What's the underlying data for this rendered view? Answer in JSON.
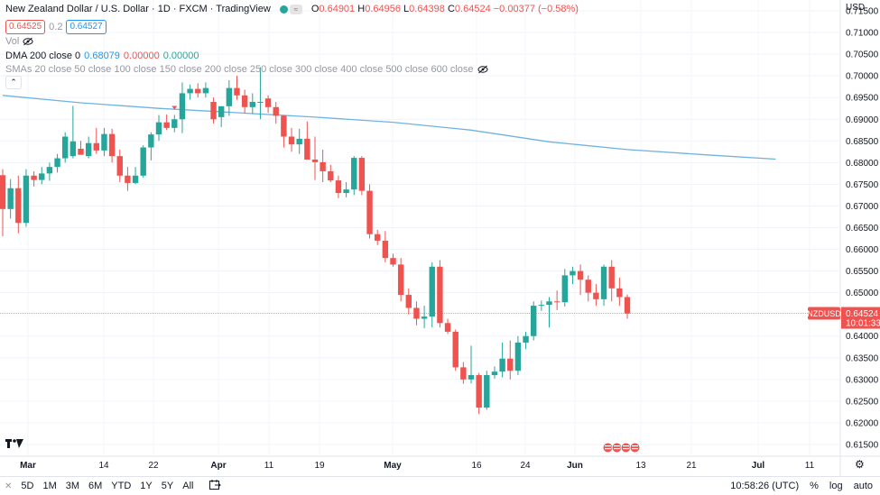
{
  "header": {
    "symbol_title": "New Zealand Dollar / U.S. Dollar · 1D · FXCM · TradingView",
    "ohlc": {
      "o_label": "O",
      "o": "0.64901",
      "h_label": "H",
      "h": "0.64956",
      "l_label": "L",
      "l": "0.64398",
      "c_label": "C",
      "c": "0.64524",
      "change": "−0.00377 (−0.58%)"
    },
    "bid": "0.64525",
    "spread": "0.2",
    "ask": "0.64527"
  },
  "indicators": {
    "vol_label": "Vol",
    "dma_label": "DMA 200 close 0",
    "dma_values": [
      "0.68079",
      "0.00000",
      "0.00000"
    ],
    "smas_label": "SMAs 20 close 50 close 100 close 150 close 200 close 250 close 300 close 400 close 500 close 600 close"
  },
  "price_axis": {
    "currency": "USD",
    "ticks": [
      "0.71500",
      "0.71000",
      "0.70500",
      "0.70000",
      "0.69500",
      "0.69000",
      "0.68500",
      "0.68000",
      "0.67500",
      "0.67000",
      "0.66500",
      "0.66000",
      "0.65500",
      "0.65000",
      "0.64000",
      "0.63500",
      "0.63000",
      "0.62500",
      "0.62000",
      "0.61500"
    ],
    "last_symbol": "NZDUSD",
    "last_price": "0.64524",
    "countdown": "10:01:33"
  },
  "time_axis": {
    "labels": [
      "Mar",
      "14",
      "22",
      "Apr",
      "11",
      "19",
      "May",
      "16",
      "24",
      "Jun",
      "13",
      "21",
      "Jul",
      "11"
    ]
  },
  "bottom_bar": {
    "ranges": [
      "5D",
      "1M",
      "3M",
      "6M",
      "YTD",
      "1Y",
      "5Y",
      "All"
    ],
    "clock": "10:58:26 (UTC)",
    "percent": "%",
    "log": "log",
    "auto": "auto"
  },
  "colors": {
    "up": "#26a69a",
    "down": "#ef5350",
    "ma": "#6fb3e0"
  },
  "chart_data": {
    "type": "candlestick",
    "candles": [
      {
        "o": 0.6771,
        "h": 0.6785,
        "l": 0.663,
        "c": 0.6693
      },
      {
        "o": 0.6693,
        "h": 0.6762,
        "l": 0.6671,
        "c": 0.6741
      },
      {
        "o": 0.6741,
        "h": 0.677,
        "l": 0.6637,
        "c": 0.6661
      },
      {
        "o": 0.6661,
        "h": 0.6785,
        "l": 0.6652,
        "c": 0.677
      },
      {
        "o": 0.677,
        "h": 0.678,
        "l": 0.6745,
        "c": 0.676
      },
      {
        "o": 0.676,
        "h": 0.679,
        "l": 0.675,
        "c": 0.6775
      },
      {
        "o": 0.6775,
        "h": 0.68,
        "l": 0.6758,
        "c": 0.679
      },
      {
        "o": 0.679,
        "h": 0.682,
        "l": 0.6777,
        "c": 0.681
      },
      {
        "o": 0.681,
        "h": 0.687,
        "l": 0.68,
        "c": 0.686
      },
      {
        "o": 0.6815,
        "h": 0.6931,
        "l": 0.681,
        "c": 0.6849
      },
      {
        "o": 0.6832,
        "h": 0.685,
        "l": 0.6822,
        "c": 0.6818
      },
      {
        "o": 0.6815,
        "h": 0.686,
        "l": 0.681,
        "c": 0.6845
      },
      {
        "o": 0.6845,
        "h": 0.688,
        "l": 0.682,
        "c": 0.6828
      },
      {
        "o": 0.6828,
        "h": 0.688,
        "l": 0.6815,
        "c": 0.6866
      },
      {
        "o": 0.6866,
        "h": 0.6878,
        "l": 0.68,
        "c": 0.6815
      },
      {
        "o": 0.6815,
        "h": 0.683,
        "l": 0.6755,
        "c": 0.677
      },
      {
        "o": 0.677,
        "h": 0.679,
        "l": 0.6735,
        "c": 0.6753
      },
      {
        "o": 0.6753,
        "h": 0.679,
        "l": 0.675,
        "c": 0.677
      },
      {
        "o": 0.677,
        "h": 0.684,
        "l": 0.6765,
        "c": 0.6835
      },
      {
        "o": 0.6835,
        "h": 0.687,
        "l": 0.6805,
        "c": 0.6865
      },
      {
        "o": 0.6865,
        "h": 0.691,
        "l": 0.685,
        "c": 0.6893
      },
      {
        "o": 0.6893,
        "h": 0.6911,
        "l": 0.6875,
        "c": 0.688
      },
      {
        "o": 0.688,
        "h": 0.691,
        "l": 0.687,
        "c": 0.69
      },
      {
        "o": 0.69,
        "h": 0.6985,
        "l": 0.6868,
        "c": 0.696
      },
      {
        "o": 0.696,
        "h": 0.698,
        "l": 0.6945,
        "c": 0.697
      },
      {
        "o": 0.697,
        "h": 0.6983,
        "l": 0.695,
        "c": 0.696
      },
      {
        "o": 0.696,
        "h": 0.6985,
        "l": 0.695,
        "c": 0.6972
      },
      {
        "o": 0.694,
        "h": 0.695,
        "l": 0.689,
        "c": 0.69
      },
      {
        "o": 0.6905,
        "h": 0.693,
        "l": 0.6882,
        "c": 0.693
      },
      {
        "o": 0.693,
        "h": 0.699,
        "l": 0.6908,
        "c": 0.6972
      },
      {
        "o": 0.6972,
        "h": 0.7,
        "l": 0.6945,
        "c": 0.6955
      },
      {
        "o": 0.6955,
        "h": 0.6968,
        "l": 0.6913,
        "c": 0.6928
      },
      {
        "o": 0.6928,
        "h": 0.696,
        "l": 0.6912,
        "c": 0.694
      },
      {
        "o": 0.694,
        "h": 0.702,
        "l": 0.69,
        "c": 0.694
      },
      {
        "o": 0.6948,
        "h": 0.6955,
        "l": 0.6915,
        "c": 0.6928
      },
      {
        "o": 0.6928,
        "h": 0.694,
        "l": 0.689,
        "c": 0.6908
      },
      {
        "o": 0.6908,
        "h": 0.691,
        "l": 0.6835,
        "c": 0.686
      },
      {
        "o": 0.686,
        "h": 0.688,
        "l": 0.6825,
        "c": 0.6842
      },
      {
        "o": 0.6842,
        "h": 0.6878,
        "l": 0.682,
        "c": 0.6855
      },
      {
        "o": 0.6855,
        "h": 0.6895,
        "l": 0.6815,
        "c": 0.6807
      },
      {
        "o": 0.6807,
        "h": 0.686,
        "l": 0.676,
        "c": 0.6801
      },
      {
        "o": 0.6801,
        "h": 0.683,
        "l": 0.6755,
        "c": 0.678
      },
      {
        "o": 0.678,
        "h": 0.6795,
        "l": 0.6755,
        "c": 0.6759
      },
      {
        "o": 0.6759,
        "h": 0.677,
        "l": 0.6718,
        "c": 0.673
      },
      {
        "o": 0.673,
        "h": 0.6755,
        "l": 0.672,
        "c": 0.6738
      },
      {
        "o": 0.6738,
        "h": 0.6815,
        "l": 0.6725,
        "c": 0.6811
      },
      {
        "o": 0.6811,
        "h": 0.6815,
        "l": 0.6725,
        "c": 0.6735
      },
      {
        "o": 0.6735,
        "h": 0.675,
        "l": 0.6625,
        "c": 0.6635
      },
      {
        "o": 0.6635,
        "h": 0.6645,
        "l": 0.661,
        "c": 0.662
      },
      {
        "o": 0.662,
        "h": 0.6642,
        "l": 0.657,
        "c": 0.658
      },
      {
        "o": 0.658,
        "h": 0.659,
        "l": 0.656,
        "c": 0.6565
      },
      {
        "o": 0.6565,
        "h": 0.658,
        "l": 0.648,
        "c": 0.6495
      },
      {
        "o": 0.6495,
        "h": 0.651,
        "l": 0.645,
        "c": 0.6465
      },
      {
        "o": 0.6465,
        "h": 0.648,
        "l": 0.6425,
        "c": 0.644
      },
      {
        "o": 0.644,
        "h": 0.647,
        "l": 0.6418,
        "c": 0.6445
      },
      {
        "o": 0.6445,
        "h": 0.657,
        "l": 0.642,
        "c": 0.656
      },
      {
        "o": 0.656,
        "h": 0.6575,
        "l": 0.642,
        "c": 0.643
      },
      {
        "o": 0.643,
        "h": 0.644,
        "l": 0.6405,
        "c": 0.641
      },
      {
        "o": 0.641,
        "h": 0.6415,
        "l": 0.632,
        "c": 0.6328
      },
      {
        "o": 0.6328,
        "h": 0.634,
        "l": 0.629,
        "c": 0.63
      },
      {
        "o": 0.63,
        "h": 0.6378,
        "l": 0.6291,
        "c": 0.631
      },
      {
        "o": 0.631,
        "h": 0.6315,
        "l": 0.622,
        "c": 0.6235
      },
      {
        "o": 0.6235,
        "h": 0.632,
        "l": 0.623,
        "c": 0.631
      },
      {
        "o": 0.631,
        "h": 0.633,
        "l": 0.6302,
        "c": 0.6318
      },
      {
        "o": 0.6318,
        "h": 0.6385,
        "l": 0.6305,
        "c": 0.6348
      },
      {
        "o": 0.6348,
        "h": 0.639,
        "l": 0.63,
        "c": 0.632
      },
      {
        "o": 0.632,
        "h": 0.64,
        "l": 0.631,
        "c": 0.6385
      },
      {
        "o": 0.6385,
        "h": 0.641,
        "l": 0.637,
        "c": 0.64
      },
      {
        "o": 0.64,
        "h": 0.648,
        "l": 0.639,
        "c": 0.647
      },
      {
        "o": 0.647,
        "h": 0.6482,
        "l": 0.6458,
        "c": 0.6472
      },
      {
        "o": 0.6472,
        "h": 0.649,
        "l": 0.642,
        "c": 0.648
      },
      {
        "o": 0.648,
        "h": 0.6505,
        "l": 0.646,
        "c": 0.6478
      },
      {
        "o": 0.6478,
        "h": 0.6555,
        "l": 0.6468,
        "c": 0.654
      },
      {
        "o": 0.654,
        "h": 0.656,
        "l": 0.652,
        "c": 0.655
      },
      {
        "o": 0.655,
        "h": 0.6565,
        "l": 0.6495,
        "c": 0.653
      },
      {
        "o": 0.653,
        "h": 0.654,
        "l": 0.648,
        "c": 0.65
      },
      {
        "o": 0.65,
        "h": 0.652,
        "l": 0.647,
        "c": 0.6485
      },
      {
        "o": 0.6485,
        "h": 0.6565,
        "l": 0.647,
        "c": 0.656
      },
      {
        "o": 0.656,
        "h": 0.6575,
        "l": 0.648,
        "c": 0.651
      },
      {
        "o": 0.651,
        "h": 0.6535,
        "l": 0.647,
        "c": 0.649
      },
      {
        "o": 0.649,
        "h": 0.6496,
        "l": 0.644,
        "c": 0.6452
      }
    ],
    "dma_200": [
      {
        "bar": 0,
        "v": 0.6955
      },
      {
        "bar": 10,
        "v": 0.6938
      },
      {
        "bar": 20,
        "v": 0.6925
      },
      {
        "bar": 30,
        "v": 0.6915
      },
      {
        "bar": 40,
        "v": 0.6905
      },
      {
        "bar": 50,
        "v": 0.6893
      },
      {
        "bar": 60,
        "v": 0.6875
      },
      {
        "bar": 70,
        "v": 0.6848
      },
      {
        "bar": 80,
        "v": 0.683
      },
      {
        "bar": 90,
        "v": 0.6818
      },
      {
        "bar": 99,
        "v": 0.6808
      }
    ],
    "ylim": [
      0.6125,
      0.7175
    ],
    "last_price": 0.64524,
    "markers": {
      "arrow_bar": 22
    }
  }
}
